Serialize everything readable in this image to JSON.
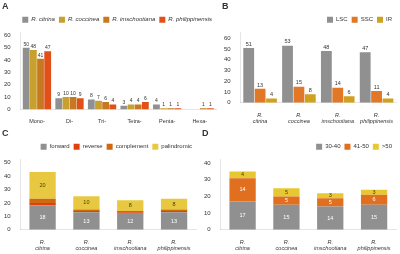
{
  "chart_data": [
    {
      "type": "bar",
      "title": "A",
      "categories": [
        "Mono-",
        "Di-",
        "Tri-",
        "Tetra-",
        "Penta-",
        "Hexa-"
      ],
      "series": [
        {
          "name": "R. citrina",
          "color": "#909090",
          "values": [
            50,
            9,
            8,
            3,
            4,
            0
          ],
          "value_labels": [
            "50",
            "9",
            "8",
            "3",
            "4",
            null
          ]
        },
        {
          "name": "R. coccinea",
          "color": "#c8a030",
          "values": [
            48,
            10,
            7,
            4,
            1,
            0
          ],
          "value_labels": [
            "48",
            "10",
            "7",
            "4",
            "1",
            null
          ]
        },
        {
          "name": "R. imschootiana",
          "color": "#c87820",
          "values": [
            41,
            10,
            6,
            4,
            1,
            1
          ]
        },
        {
          "name": "R. philippinensis",
          "color": "#e05018",
          "values": [
            47,
            9,
            4,
            6,
            1,
            1
          ]
        }
      ],
      "ylim": [
        0,
        62
      ],
      "yticks": [
        0,
        10,
        20,
        30,
        40,
        50,
        60
      ],
      "grid": false,
      "legend": "upper right",
      "data_labels": true
    },
    {
      "type": "bar",
      "title": "B",
      "categories": [
        "R. citrina",
        "R. coccinea",
        "R. imschootiana",
        "R. philippinensis"
      ],
      "series": [
        {
          "name": "LSC",
          "color": "#909090",
          "values": [
            51,
            53,
            48,
            47
          ]
        },
        {
          "name": "SSC",
          "color": "#e07828",
          "values": [
            13,
            15,
            14,
            11
          ]
        },
        {
          "name": "IR",
          "color": "#d0a020",
          "values": [
            4,
            8,
            6,
            4
          ]
        }
      ],
      "ylim": [
        0,
        65
      ],
      "yticks": [
        0,
        10,
        20,
        30,
        40,
        50,
        60
      ],
      "grid": false,
      "legend": "upper right",
      "data_labels": true
    },
    {
      "type": "bar",
      "title": "C",
      "stacked": true,
      "categories": [
        "R. citrina",
        "R. coccinea",
        "R. imschootiana",
        "R. philippinensis"
      ],
      "series": [
        {
          "name": "forward",
          "color": "#909090",
          "values": [
            18,
            13,
            12,
            13
          ],
          "data_labels": true
        },
        {
          "name": "reverse",
          "color": "#e04010",
          "values": [
            2,
            1,
            1,
            1
          ],
          "data_labels": false
        },
        {
          "name": "complement",
          "color": "#d06810",
          "values": [
            3,
            1,
            1,
            1
          ],
          "data_labels": false
        },
        {
          "name": "palindromic",
          "color": "#e8c840",
          "values": [
            20,
            10,
            8,
            8
          ],
          "data_labels": true
        }
      ],
      "ylim": [
        0,
        52
      ],
      "yticks": [
        0,
        10,
        20,
        30,
        40,
        50
      ],
      "grid": false,
      "legend": "upper right"
    },
    {
      "type": "bar",
      "title": "D",
      "stacked": true,
      "categories": [
        "R. citrina",
        "R. coccinea",
        "R. imschootiana",
        "R. philippinensis"
      ],
      "series": [
        {
          "name": "30-40",
          "color": "#909090",
          "values": [
            17,
            15,
            14,
            15
          ]
        },
        {
          "name": "41-50",
          "color": "#e07020",
          "values": [
            14,
            5,
            5,
            6
          ]
        },
        {
          "name": ">50",
          "color": "#e8c830",
          "values": [
            4,
            5,
            3,
            3
          ]
        }
      ],
      "ylim": [
        0,
        42
      ],
      "yticks": [
        0,
        10,
        20,
        30,
        40
      ],
      "grid": false,
      "legend": "upper right",
      "data_labels": true
    }
  ]
}
